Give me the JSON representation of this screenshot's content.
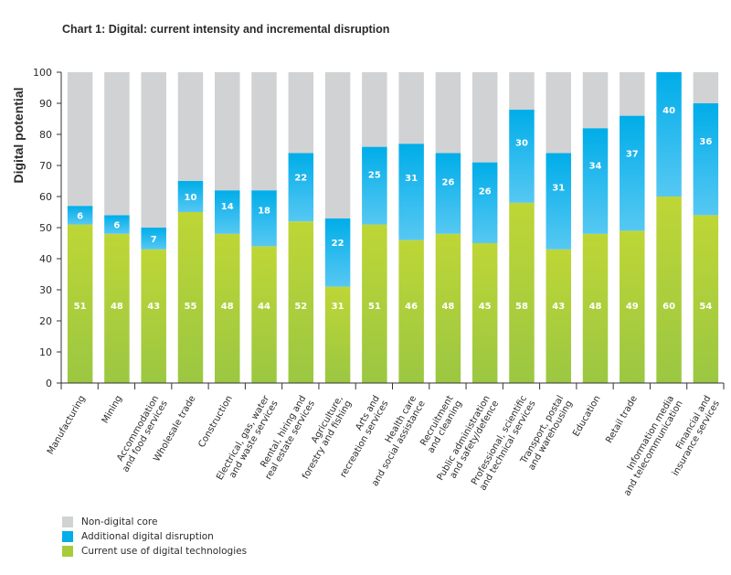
{
  "chart_data": {
    "type": "bar",
    "stacked": true,
    "title": "Chart 1: Digital: current intensity and incremental disruption",
    "ylabel": "Digital potential",
    "xlabel": "",
    "ylim": [
      0,
      100
    ],
    "yticks": [
      0,
      10,
      20,
      30,
      40,
      50,
      60,
      70,
      80,
      90,
      100
    ],
    "grid": false,
    "legend_position": "bottom-left",
    "categories": [
      [
        "Manufacturing"
      ],
      [
        "Mining"
      ],
      [
        "Accommodation",
        "and food services"
      ],
      [
        "Wholesale trade"
      ],
      [
        "Construction"
      ],
      [
        "Electrical, gas, water",
        "and waste services"
      ],
      [
        "Rental, hiring and",
        "real estate services"
      ],
      [
        "Agriculture,",
        "forestry and fishing"
      ],
      [
        "Arts and",
        "recreation services"
      ],
      [
        "Health care",
        "and social assistance"
      ],
      [
        "Recruitment",
        "and cleaning"
      ],
      [
        "Public administration",
        "and safety/defence"
      ],
      [
        "Professional, scientific",
        "and technical services"
      ],
      [
        "Transport, postal",
        "and warehousing"
      ],
      [
        "Education"
      ],
      [
        "Retail trade"
      ],
      [
        "Information media",
        "and telecommunication"
      ],
      [
        "Financial and",
        "insurance services"
      ]
    ],
    "series": [
      {
        "name": "Current use of digital technologies",
        "color": "#a6cc3c",
        "values": [
          51,
          48,
          43,
          55,
          48,
          44,
          52,
          31,
          51,
          46,
          48,
          45,
          58,
          43,
          48,
          49,
          60,
          54
        ]
      },
      {
        "name": "Additional digital disruption",
        "color": "#00aee8",
        "values": [
          6,
          6,
          7,
          10,
          14,
          18,
          22,
          22,
          25,
          31,
          26,
          26,
          30,
          31,
          34,
          37,
          40,
          36
        ]
      },
      {
        "name": "Non-digital core",
        "color": "#d1d2d4",
        "values": [
          43,
          46,
          50,
          35,
          38,
          38,
          26,
          47,
          24,
          23,
          26,
          29,
          12,
          26,
          18,
          14,
          0,
          10
        ]
      }
    ]
  },
  "legend": [
    {
      "label": "Non-digital core",
      "color": "#d1d2d4"
    },
    {
      "label": "Additional digital disruption",
      "color": "#00aee8"
    },
    {
      "label": "Current use of digital technologies",
      "color": "#a6cc3c"
    }
  ]
}
